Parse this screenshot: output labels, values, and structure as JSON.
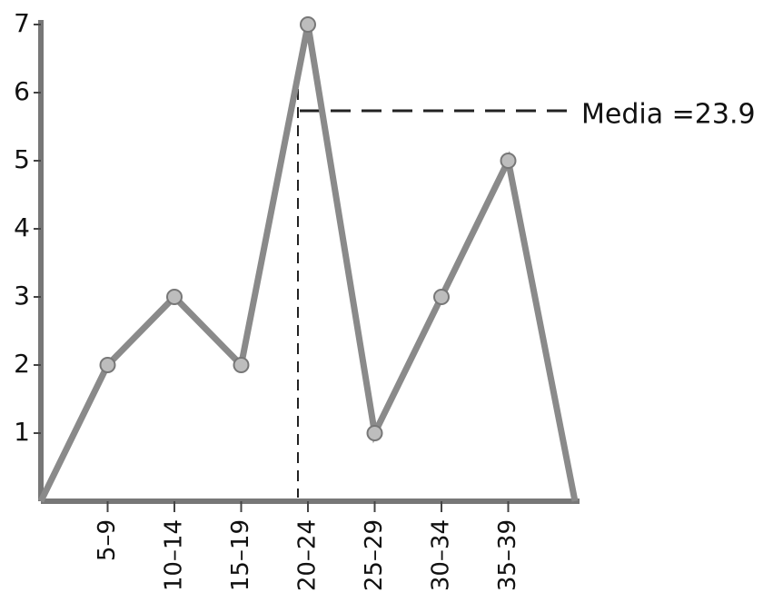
{
  "chart_data": {
    "type": "line",
    "categories": [
      null,
      "5–9",
      "10–14",
      "15–19",
      "20–24",
      "25–29",
      "30–34",
      "35–39",
      null
    ],
    "values": [
      0,
      2,
      3,
      2,
      7,
      1,
      3,
      5,
      0
    ],
    "color": "#8a8a8a",
    "ylim": [
      0,
      7
    ],
    "yticks": [
      1,
      2,
      3,
      4,
      5,
      6,
      7
    ],
    "annotation": "Media =23.9"
  }
}
